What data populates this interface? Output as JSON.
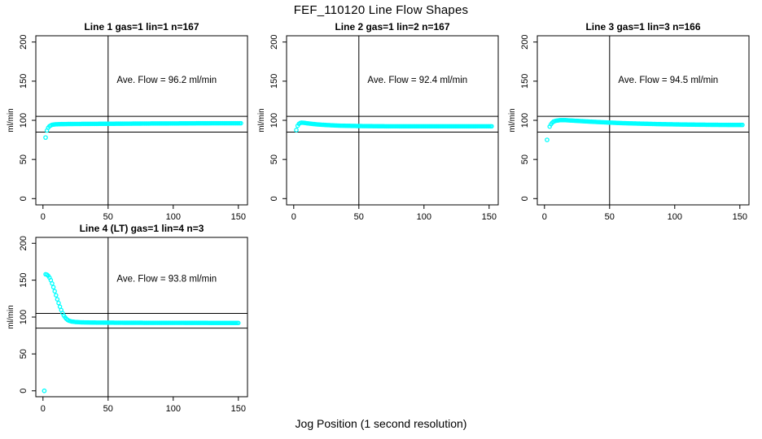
{
  "title": "FEF_110120  Line Flow Shapes",
  "xlabel": "Jog Position (1 second resolution)",
  "colors": {
    "points": "#00FFFF",
    "axis": "#000000",
    "background": "#FFFFFF"
  },
  "chart_data": [
    {
      "type": "scatter",
      "title": "Line 1 gas=1 lin=1 n=167",
      "ylabel": "ml/min",
      "annotation": "Ave. Flow =  96.2  ml/min",
      "avg_flow_ml_min": 96.2,
      "n": 167,
      "xticks": [
        0,
        50,
        100,
        150
      ],
      "yticks": [
        0,
        50,
        100,
        150,
        200
      ],
      "xlim": [
        -5.5,
        157
      ],
      "ylim": [
        -8,
        208
      ],
      "vline_x": 50,
      "hlines": [
        105,
        85
      ],
      "annotation_xy": [
        95,
        148
      ],
      "outliers": [
        [
          2,
          78
        ]
      ],
      "series": [
        [
          3,
          87
        ],
        [
          4,
          90.5
        ],
        [
          5,
          92.5
        ],
        [
          6,
          93.5
        ],
        [
          7,
          94.3
        ],
        [
          9,
          94.8
        ],
        [
          12,
          95.1
        ],
        [
          20,
          95.3
        ],
        [
          30,
          95.4
        ],
        [
          40,
          95.5
        ],
        [
          60,
          95.7
        ],
        [
          80,
          95.9
        ],
        [
          100,
          96.0
        ],
        [
          120,
          96.2
        ],
        [
          140,
          96.3
        ],
        [
          152,
          96.3
        ]
      ]
    },
    {
      "type": "scatter",
      "title": "Line 2 gas=1 lin=2 n=167",
      "ylabel": "ml/min",
      "annotation": "Ave. Flow =  92.4  ml/min",
      "avg_flow_ml_min": 92.4,
      "n": 167,
      "xticks": [
        0,
        50,
        100,
        150
      ],
      "yticks": [
        0,
        50,
        100,
        150,
        200
      ],
      "xlim": [
        -5.5,
        157
      ],
      "ylim": [
        -8,
        208
      ],
      "vline_x": 50,
      "hlines": [
        105,
        85
      ],
      "annotation_xy": [
        95,
        148
      ],
      "outliers": [
        [
          2,
          87.5
        ]
      ],
      "series": [
        [
          3,
          93
        ],
        [
          4,
          95.5
        ],
        [
          5,
          96.6
        ],
        [
          6,
          97
        ],
        [
          8,
          96.8
        ],
        [
          10,
          96.3
        ],
        [
          14,
          95.5
        ],
        [
          18,
          94.8
        ],
        [
          25,
          94
        ],
        [
          35,
          93.2
        ],
        [
          50,
          92.7
        ],
        [
          70,
          92.4
        ],
        [
          90,
          92.3
        ],
        [
          110,
          92.3
        ],
        [
          130,
          92.3
        ],
        [
          152,
          92.4
        ]
      ]
    },
    {
      "type": "scatter",
      "title": "Line 3 gas=1 lin=3 n=166",
      "ylabel": "ml/min",
      "annotation": "Ave. Flow =  94.5  ml/min",
      "avg_flow_ml_min": 94.5,
      "n": 166,
      "xticks": [
        0,
        50,
        100,
        150
      ],
      "yticks": [
        0,
        50,
        100,
        150,
        200
      ],
      "xlim": [
        -5.5,
        157
      ],
      "ylim": [
        -8,
        208
      ],
      "vline_x": 50,
      "hlines": [
        105,
        85
      ],
      "annotation_xy": [
        95,
        148
      ],
      "outliers": [
        [
          2,
          75
        ]
      ],
      "series": [
        [
          4,
          92
        ],
        [
          5,
          95
        ],
        [
          6,
          97
        ],
        [
          7,
          98.5
        ],
        [
          9,
          99.5
        ],
        [
          12,
          100.2
        ],
        [
          16,
          100.2
        ],
        [
          20,
          99.8
        ],
        [
          25,
          99.3
        ],
        [
          30,
          98.8
        ],
        [
          40,
          97.9
        ],
        [
          50,
          97.1
        ],
        [
          60,
          96.4
        ],
        [
          75,
          95.7
        ],
        [
          90,
          95.1
        ],
        [
          105,
          94.7
        ],
        [
          120,
          94.4
        ],
        [
          135,
          94.2
        ],
        [
          152,
          94.1
        ]
      ]
    },
    {
      "type": "scatter",
      "title": "Line 4 (LT) gas=1 lin=4 n=3",
      "ylabel": "ml/min",
      "annotation": "Ave. Flow =  93.8  ml/min",
      "avg_flow_ml_min": 93.8,
      "n": 3,
      "xticks": [
        0,
        50,
        100,
        150
      ],
      "yticks": [
        0,
        50,
        100,
        150,
        200
      ],
      "xlim": [
        -5.5,
        157
      ],
      "ylim": [
        -8,
        208
      ],
      "vline_x": 50,
      "hlines": [
        105,
        85
      ],
      "annotation_xy": [
        95,
        148
      ],
      "outliers": [
        [
          1,
          0
        ]
      ],
      "series": [
        [
          2,
          158
        ],
        [
          3,
          157.5
        ],
        [
          4,
          156
        ],
        [
          5,
          153.5
        ],
        [
          6,
          150
        ],
        [
          7,
          145.5
        ],
        [
          8,
          140.5
        ],
        [
          9,
          135
        ],
        [
          10,
          129.5
        ],
        [
          11,
          124
        ],
        [
          12,
          119
        ],
        [
          13,
          114
        ],
        [
          14,
          109.5
        ],
        [
          15,
          105.5
        ],
        [
          16,
          102
        ],
        [
          17,
          99.5
        ],
        [
          18,
          97.5
        ],
        [
          19,
          96
        ],
        [
          20,
          95
        ],
        [
          22,
          94
        ],
        [
          25,
          93.3
        ],
        [
          30,
          92.8
        ],
        [
          40,
          92.5
        ],
        [
          60,
          92.3
        ],
        [
          80,
          92.2
        ],
        [
          100,
          92.2
        ],
        [
          120,
          92.1
        ],
        [
          150,
          92
        ]
      ]
    }
  ]
}
